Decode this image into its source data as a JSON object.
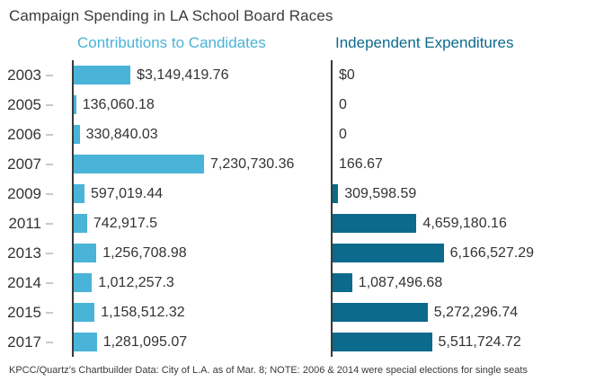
{
  "title": "Campaign Spending in LA School Board Races",
  "footer": "KPCC/Quartz’s Chartbuilder Data: City of L.A. as of Mar. 8; NOTE: 2006 & 2014 were special elections for single seats",
  "colors": {
    "contributions": "#4ab3d8",
    "independent": "#0c6a8d",
    "axis": "#3a3a3a",
    "tick": "#c9c9c9",
    "text": "#333333"
  },
  "chart_data": {
    "type": "bar",
    "orientation": "horizontal",
    "title": "Campaign Spending in LA School Board Races",
    "xlabel": "",
    "ylabel": "Year",
    "grid": false,
    "legend_position": "top-as-panel-headers",
    "categories": [
      "2003",
      "2005",
      "2006",
      "2007",
      "2009",
      "2011",
      "2013",
      "2014",
      "2015",
      "2017"
    ],
    "series": [
      {
        "name": "Contributions to Candidates",
        "color": "#4ab3d8",
        "values": [
          3149419.76,
          136060.18,
          330840.03,
          7230730.36,
          597019.44,
          742917.5,
          1256708.98,
          1012257.3,
          1158512.32,
          1281095.07
        ],
        "labels": [
          "$3,149,419.76",
          "136,060.18",
          "330,840.03",
          "7,230,730.36",
          "597,019.44",
          "742,917.5",
          "1,256,708.98",
          "1,012,257.3",
          "1,158,512.32",
          "1,281,095.07"
        ]
      },
      {
        "name": "Independent Expenditures",
        "color": "#0c6a8d",
        "values": [
          0,
          0,
          0,
          166.67,
          309598.59,
          4659180.16,
          6166527.29,
          1087496.68,
          5272296.74,
          5511724.72
        ],
        "labels": [
          "$0",
          "0",
          "0",
          "166.67",
          "309,598.59",
          "4,659,180.16",
          "6,166,527.29",
          "1,087,496.68",
          "5,272,296.74",
          "5,511,724.72"
        ]
      }
    ]
  }
}
